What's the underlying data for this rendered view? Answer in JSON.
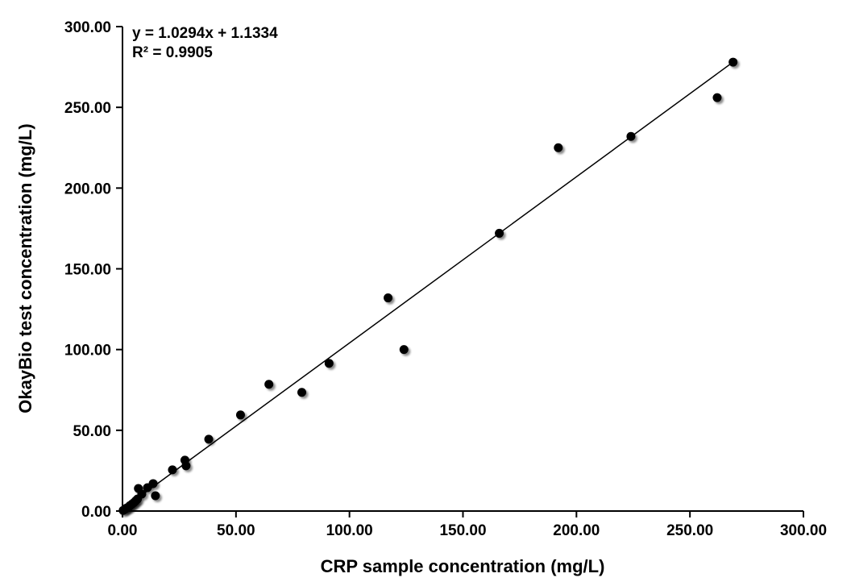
{
  "chart_data": {
    "type": "scatter",
    "title": "",
    "xlabel": "CRP sample concentration (mg/L)",
    "ylabel": "OkayBio test concentration (mg/L)",
    "xlim": [
      0,
      300
    ],
    "ylim": [
      0,
      300
    ],
    "grid": false,
    "tick_values": [
      0,
      50,
      100,
      150,
      200,
      250,
      300
    ],
    "x_ticks": [
      "0.00",
      "50.00",
      "100.00",
      "150.00",
      "200.00",
      "250.00",
      "300.00"
    ],
    "y_ticks": [
      "0.00",
      "50.00",
      "100.00",
      "150.00",
      "200.00",
      "250.00",
      "300.00"
    ],
    "marker_color": "#000000",
    "line_color": "#000000",
    "points": [
      [
        0.3,
        0.4
      ],
      [
        1,
        1
      ],
      [
        1.8,
        1.9
      ],
      [
        2.6,
        2.4
      ],
      [
        3.3,
        3.4
      ],
      [
        4.2,
        4.3
      ],
      [
        5,
        5.2
      ],
      [
        5.8,
        6.3
      ],
      [
        6.6,
        7.4
      ],
      [
        7,
        14
      ],
      [
        8.5,
        10.5
      ],
      [
        11,
        14.5
      ],
      [
        13.5,
        17
      ],
      [
        14.5,
        9.5
      ],
      [
        22,
        25.5
      ],
      [
        27.5,
        31.5
      ],
      [
        28,
        28
      ],
      [
        38,
        44.5
      ],
      [
        52,
        59.5
      ],
      [
        64.5,
        78.5
      ],
      [
        79,
        73.5
      ],
      [
        91,
        91.5
      ],
      [
        117,
        132
      ],
      [
        124,
        100
      ],
      [
        166,
        172
      ],
      [
        192,
        225
      ],
      [
        224,
        232
      ],
      [
        262,
        256
      ],
      [
        269,
        278
      ]
    ],
    "trendline": {
      "slope": 1.0294,
      "intercept": 1.1334,
      "x_start": 0,
      "x_end": 269,
      "equation": "y = 1.0294x + 1.1334",
      "r_squared": "R² = 0.9905"
    }
  }
}
